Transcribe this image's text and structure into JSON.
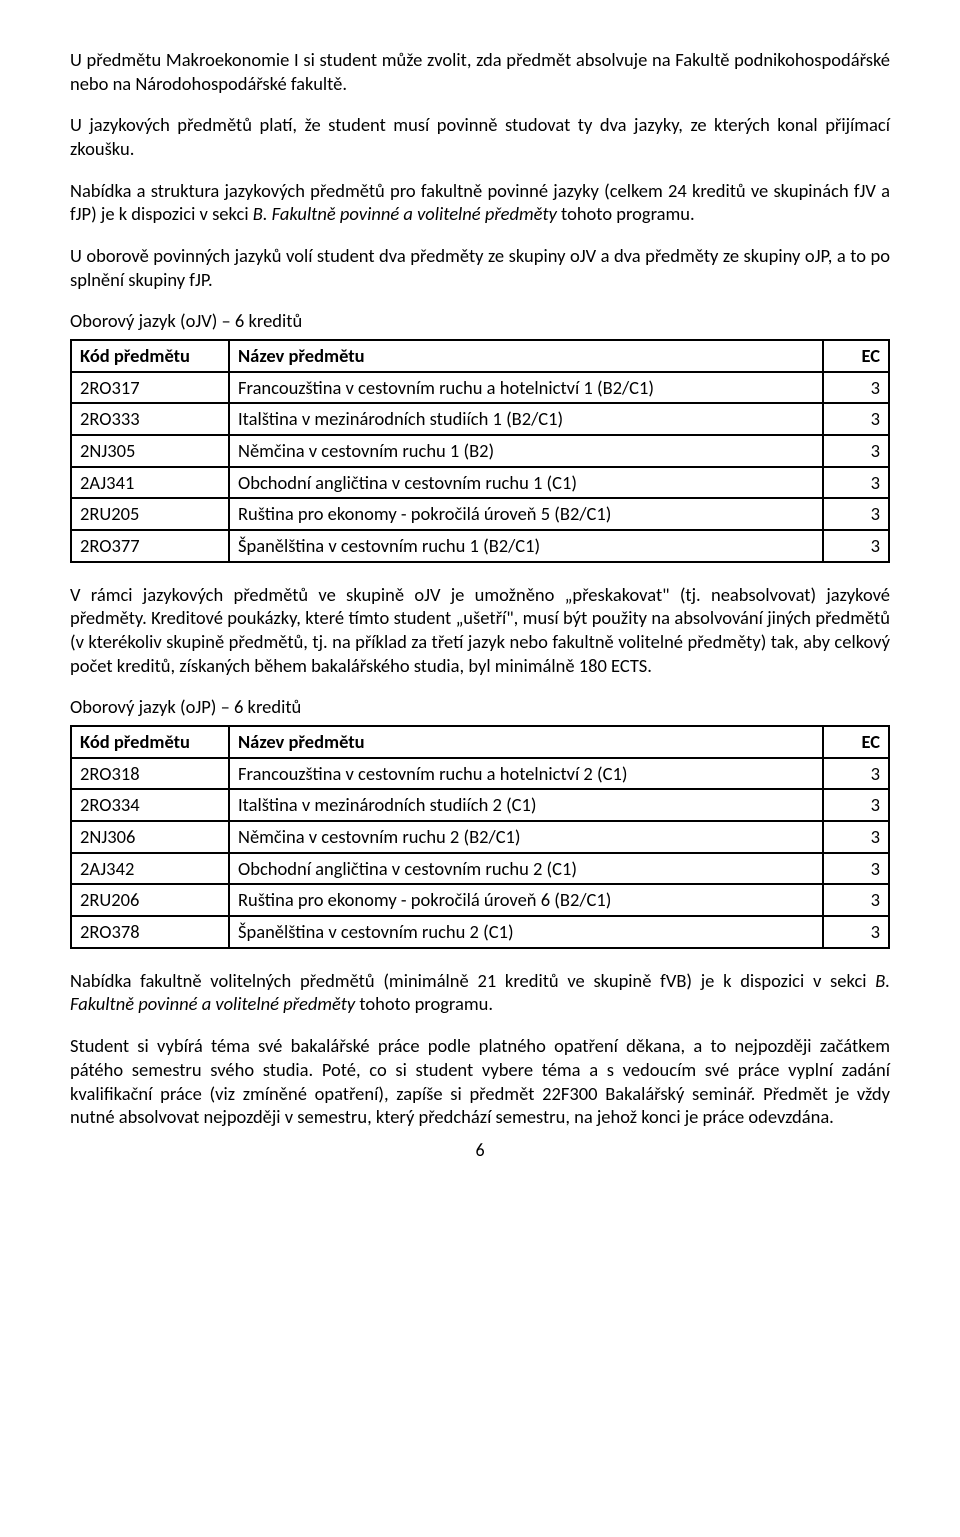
{
  "paragraphs": {
    "p1": "U předmětu Makroekonomie I si student může zvolit, zda předmět absolvuje na Fakultě podnikohospodářské nebo na Národohospodářské fakultě.",
    "p2": "U jazykových předmětů platí, že student musí povinně studovat ty dva jazyky, ze kterých konal přijímací zkoušku.",
    "p3a": "Nabídka a struktura jazykových předmětů pro fakultně povinné jazyky (celkem 24 kreditů ve skupinách fJV a fJP) je k dispozici v sekci ",
    "p3b": "B. Fakultně povinné a volitelné předměty",
    "p3c": " tohoto programu.",
    "p4": "U oborově povinných jazyků volí student dva předměty ze skupiny oJV a dva předměty ze skupiny oJP, a to po splnění skupiny fJP.",
    "p5": "Oborový jazyk (oJV) – 6 kreditů",
    "p6": "V rámci jazykových předmětů ve skupině oJV je umožněno „přeskakovat\" (tj. neabsolvovat) jazykové předměty. Kreditové poukázky, které tímto student „ušetří\", musí být použity na absolvování jiných předmětů (v kterékoliv skupině předmětů, tj. na příklad za třetí jazyk nebo fakultně volitelné předměty) tak, aby celkový počet kreditů, získaných během bakalářského studia, byl minimálně 180 ECTS.",
    "p7": "Oborový jazyk (oJP) – 6 kreditů",
    "p8a": "Nabídka fakultně volitelných předmětů (minimálně 21 kreditů ve skupině fVB) je k dispozici v sekci ",
    "p8b": "B. Fakultně povinné a volitelné předměty",
    "p8c": " tohoto programu.",
    "p9": "Student si vybírá téma své bakalářské práce podle platného opatření děkana, a to nejpozději začátkem pátého semestru svého studia. Poté, co si student vybere téma a s vedoucím své práce vyplní zadání kvalifikační práce (viz zmíněné opatření), zapíše si předmět 22F300 Bakalářský seminář. Předmět je vždy nutné absolvovat nejpozději v semestru, který předchází semestru, na jehož konci je práce odevzdána."
  },
  "table_headers": {
    "code": "Kód předmětu",
    "name": "Název předmětu",
    "ec": "EC"
  },
  "table1": {
    "rows": [
      {
        "code": "2RO317",
        "name": "Francouzština v cestovním ruchu a hotelnictví 1 (B2/C1)",
        "ec": "3"
      },
      {
        "code": "2RO333",
        "name": "Italština v mezinárodních studiích 1 (B2/C1)",
        "ec": "3"
      },
      {
        "code": "2NJ305",
        "name": "Němčina v cestovním ruchu 1 (B2)",
        "ec": "3"
      },
      {
        "code": "2AJ341",
        "name": "Obchodní angličtina v cestovním ruchu 1 (C1)",
        "ec": "3"
      },
      {
        "code": "2RU205",
        "name": "Ruština pro ekonomy - pokročilá úroveň 5 (B2/C1)",
        "ec": "3"
      },
      {
        "code": "2RO377",
        "name": "Španělština v cestovním ruchu 1 (B2/C1)",
        "ec": "3"
      }
    ]
  },
  "table2": {
    "rows": [
      {
        "code": "2RO318",
        "name": "Francouzština v cestovním ruchu a hotelnictví 2 (C1)",
        "ec": "3"
      },
      {
        "code": "2RO334",
        "name": "Italština v mezinárodních studiích 2 (C1)",
        "ec": "3"
      },
      {
        "code": "2NJ306",
        "name": "Němčina v cestovním ruchu 2 (B2/C1)",
        "ec": "3"
      },
      {
        "code": "2AJ342",
        "name": "Obchodní angličtina v cestovním ruchu 2 (C1)",
        "ec": "3"
      },
      {
        "code": "2RU206",
        "name": "Ruština pro ekonomy - pokročilá úroveň 6 (B2/C1)",
        "ec": "3"
      },
      {
        "code": "2RO378",
        "name": "Španělština v cestovním ruchu 2 (C1)",
        "ec": "3"
      }
    ]
  },
  "page_number": "6"
}
